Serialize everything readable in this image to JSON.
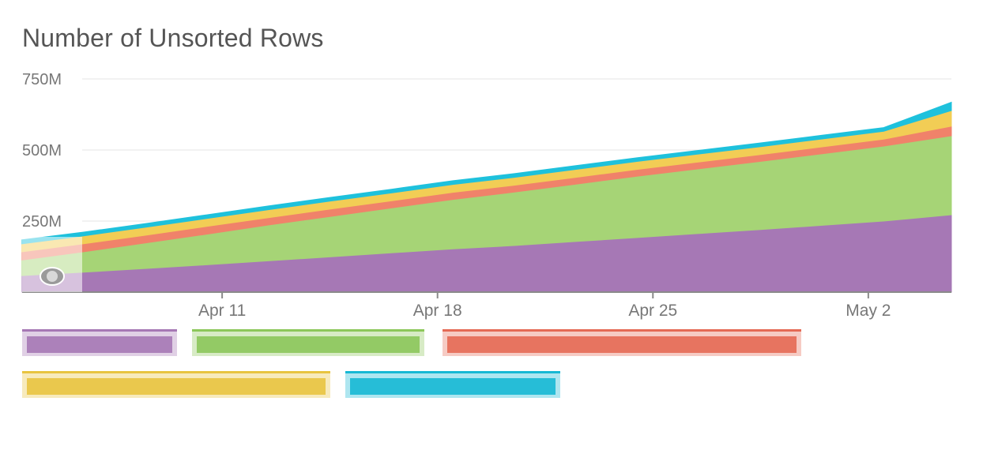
{
  "title": "Number of Unsorted Rows",
  "chart_data": {
    "type": "area",
    "stacked": true,
    "title": "Number of Unsorted Rows",
    "x_ticks": [
      "Apr 11",
      "Apr 18",
      "Apr 25",
      "May 2"
    ],
    "x_tick_days": [
      11,
      18,
      25,
      32
    ],
    "x_range_days": [
      4.5,
      34.7
    ],
    "y_ticks": [
      "750M",
      "500M",
      "250M"
    ],
    "y_tick_values": [
      750,
      500,
      250
    ],
    "ylim": [
      0,
      750
    ],
    "y_unit": "M",
    "grid": true,
    "legend_placement": "bottom",
    "x_days": [
      4.5,
      6.5,
      8.5,
      10.5,
      12.5,
      14.5,
      16.5,
      18.5,
      20.5,
      22.5,
      24.5,
      26.5,
      28.5,
      30.5,
      32.5,
      34.7
    ],
    "series": [
      {
        "color": "#a678b5",
        "values": [
          58,
          70,
          83,
          96,
          110,
          124,
          138,
          152,
          164,
          178,
          192,
          206,
          220,
          235,
          250,
          272
        ]
      },
      {
        "color": "#a6d476",
        "values": [
          55,
          72,
          90,
          108,
          126,
          142,
          158,
          174,
          188,
          202,
          216,
          228,
          240,
          252,
          264,
          278
        ]
      },
      {
        "color": "#f0826a",
        "values": [
          29,
          28,
          27,
          27,
          26,
          26,
          25,
          25,
          24,
          24,
          24,
          24,
          24,
          24,
          24,
          34
        ]
      },
      {
        "color": "#f2cd55",
        "values": [
          28,
          28,
          28,
          28,
          28,
          28,
          28,
          28,
          28,
          28,
          28,
          28,
          28,
          28,
          28,
          55
        ]
      },
      {
        "color": "#1ec1dc",
        "values": [
          14,
          13,
          13,
          13,
          13,
          13,
          13,
          13,
          13,
          13,
          13,
          13,
          13,
          13,
          13,
          29
        ]
      }
    ]
  },
  "legend": [
    {
      "color": "#a678b5"
    },
    {
      "color": "#8cc75a"
    },
    {
      "color": "#e56a55"
    },
    {
      "color": "#e8c440"
    },
    {
      "color": "#17b8d4"
    }
  ]
}
